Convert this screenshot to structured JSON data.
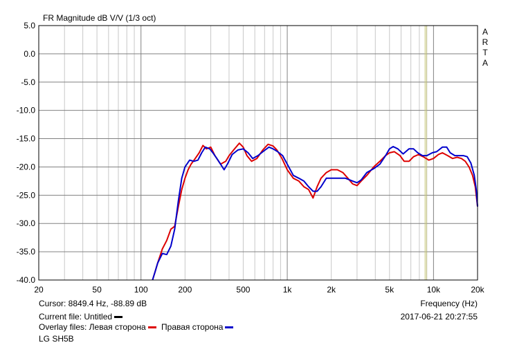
{
  "chart_data": {
    "type": "line",
    "title": "FR Magnitude dB V/V (1/3 oct)",
    "side_label": [
      "A",
      "R",
      "T",
      "A"
    ],
    "xlabel": "Frequency (Hz)",
    "x_scale": "log",
    "xlim": [
      20,
      20000
    ],
    "ylim": [
      -40,
      5
    ],
    "x_ticks": [
      {
        "value": 20,
        "label": "20"
      },
      {
        "value": 50,
        "label": "50"
      },
      {
        "value": 100,
        "label": "100"
      },
      {
        "value": 200,
        "label": "200"
      },
      {
        "value": 500,
        "label": "500"
      },
      {
        "value": 1000,
        "label": "1k"
      },
      {
        "value": 2000,
        "label": "2k"
      },
      {
        "value": 5000,
        "label": "5k"
      },
      {
        "value": 10000,
        "label": "10k"
      },
      {
        "value": 20000,
        "label": "20k"
      }
    ],
    "y_ticks": [
      {
        "value": 5,
        "label": "5.0"
      },
      {
        "value": 0,
        "label": "0.0"
      },
      {
        "value": -5,
        "label": "-5.0"
      },
      {
        "value": -10,
        "label": "-10.0"
      },
      {
        "value": -15,
        "label": "-15.0"
      },
      {
        "value": -20,
        "label": "-20.0"
      },
      {
        "value": -25,
        "label": "-25.0"
      },
      {
        "value": -30,
        "label": "-30.0"
      },
      {
        "value": -35,
        "label": "-35.0"
      },
      {
        "value": -40,
        "label": "-40.0"
      }
    ],
    "grid": true,
    "cursor_frequency": 8849.4,
    "series": [
      {
        "name": "Левая сторона",
        "color": "#dd0000",
        "points": [
          [
            120,
            -40
          ],
          [
            125,
            -38.5
          ],
          [
            130,
            -37
          ],
          [
            140,
            -34.5
          ],
          [
            150,
            -33
          ],
          [
            160,
            -31
          ],
          [
            170,
            -30.5
          ],
          [
            180,
            -27
          ],
          [
            190,
            -24
          ],
          [
            200,
            -22
          ],
          [
            210,
            -20.5
          ],
          [
            220,
            -19.5
          ],
          [
            235,
            -18.5
          ],
          [
            250,
            -17.5
          ],
          [
            265,
            -16.2
          ],
          [
            280,
            -16.8
          ],
          [
            300,
            -16.5
          ],
          [
            320,
            -18
          ],
          [
            350,
            -19.5
          ],
          [
            380,
            -19
          ],
          [
            400,
            -18
          ],
          [
            430,
            -17
          ],
          [
            470,
            -15.8
          ],
          [
            500,
            -16.5
          ],
          [
            530,
            -18
          ],
          [
            570,
            -19
          ],
          [
            620,
            -18.5
          ],
          [
            680,
            -17
          ],
          [
            740,
            -16
          ],
          [
            800,
            -16.3
          ],
          [
            850,
            -17
          ],
          [
            920,
            -18.5
          ],
          [
            1000,
            -20.5
          ],
          [
            1100,
            -22
          ],
          [
            1200,
            -22.5
          ],
          [
            1300,
            -23.5
          ],
          [
            1400,
            -24
          ],
          [
            1500,
            -25.5
          ],
          [
            1600,
            -23.5
          ],
          [
            1700,
            -22
          ],
          [
            1850,
            -21
          ],
          [
            2000,
            -20.5
          ],
          [
            2200,
            -20.5
          ],
          [
            2400,
            -21
          ],
          [
            2600,
            -22
          ],
          [
            2800,
            -23
          ],
          [
            3000,
            -23.3
          ],
          [
            3200,
            -22.5
          ],
          [
            3500,
            -21.5
          ],
          [
            3900,
            -20
          ],
          [
            4300,
            -19
          ],
          [
            4700,
            -18
          ],
          [
            5000,
            -17.5
          ],
          [
            5400,
            -17.3
          ],
          [
            5900,
            -18
          ],
          [
            6300,
            -19
          ],
          [
            6800,
            -19
          ],
          [
            7300,
            -18.2
          ],
          [
            7900,
            -17.8
          ],
          [
            8500,
            -18.2
          ],
          [
            9300,
            -18.8
          ],
          [
            10000,
            -18.5
          ],
          [
            10800,
            -17.8
          ],
          [
            11500,
            -17.5
          ],
          [
            12500,
            -18
          ],
          [
            13500,
            -18.5
          ],
          [
            14500,
            -18.3
          ],
          [
            15500,
            -18.5
          ],
          [
            16500,
            -19
          ],
          [
            17500,
            -20
          ],
          [
            18500,
            -21.5
          ],
          [
            19300,
            -23.5
          ],
          [
            20000,
            -27
          ]
        ]
      },
      {
        "name": "Правая сторона",
        "color": "#0000cc",
        "points": [
          [
            120,
            -40
          ],
          [
            125,
            -38.5
          ],
          [
            130,
            -37
          ],
          [
            140,
            -35.3
          ],
          [
            150,
            -35.5
          ],
          [
            160,
            -34
          ],
          [
            170,
            -31
          ],
          [
            180,
            -26
          ],
          [
            190,
            -22
          ],
          [
            200,
            -20
          ],
          [
            215,
            -18.8
          ],
          [
            230,
            -19
          ],
          [
            245,
            -18.8
          ],
          [
            260,
            -17.5
          ],
          [
            275,
            -16.5
          ],
          [
            295,
            -16.8
          ],
          [
            310,
            -17.5
          ],
          [
            330,
            -18.5
          ],
          [
            350,
            -19.5
          ],
          [
            370,
            -20.5
          ],
          [
            390,
            -19.5
          ],
          [
            420,
            -17.8
          ],
          [
            460,
            -17
          ],
          [
            500,
            -16.8
          ],
          [
            540,
            -17.5
          ],
          [
            580,
            -18.5
          ],
          [
            630,
            -18
          ],
          [
            690,
            -17.2
          ],
          [
            750,
            -16.5
          ],
          [
            800,
            -16.8
          ],
          [
            860,
            -17.3
          ],
          [
            930,
            -18
          ],
          [
            1000,
            -19.5
          ],
          [
            1100,
            -21.5
          ],
          [
            1200,
            -22
          ],
          [
            1300,
            -22.5
          ],
          [
            1400,
            -23.5
          ],
          [
            1500,
            -24.3
          ],
          [
            1600,
            -24.3
          ],
          [
            1700,
            -23.5
          ],
          [
            1850,
            -22
          ],
          [
            2000,
            -22
          ],
          [
            2200,
            -22
          ],
          [
            2500,
            -22
          ],
          [
            2800,
            -22.5
          ],
          [
            3000,
            -22.8
          ],
          [
            3200,
            -22.3
          ],
          [
            3500,
            -21
          ],
          [
            3900,
            -20.3
          ],
          [
            4300,
            -19.5
          ],
          [
            4700,
            -18
          ],
          [
            5000,
            -16.8
          ],
          [
            5300,
            -16.4
          ],
          [
            5700,
            -16.8
          ],
          [
            6200,
            -17.7
          ],
          [
            6800,
            -16.8
          ],
          [
            7300,
            -16.8
          ],
          [
            7800,
            -17.5
          ],
          [
            8400,
            -18
          ],
          [
            9000,
            -18
          ],
          [
            9800,
            -17.5
          ],
          [
            10500,
            -17.3
          ],
          [
            11500,
            -16.5
          ],
          [
            12300,
            -16.5
          ],
          [
            13000,
            -17.5
          ],
          [
            14000,
            -18
          ],
          [
            15000,
            -18
          ],
          [
            16000,
            -18
          ],
          [
            17000,
            -18.2
          ],
          [
            18000,
            -19.3
          ],
          [
            19000,
            -21.5
          ],
          [
            19600,
            -24
          ],
          [
            20000,
            -27
          ]
        ]
      }
    ]
  },
  "footer": {
    "cursor_text": "Cursor: 8849.4 Hz, -88.89 dB",
    "current_file_text": "Current file: Untitled",
    "overlay_prefix": "Overlay files: Левая сторона",
    "overlay_second": "Правая сторона",
    "name": "LG SH5B",
    "datetime": "2017-06-21  20:27:55"
  },
  "colors": {
    "background": "#ffffff",
    "grid_major": "#808080",
    "grid_minor": "#c8c8c8",
    "cursor_line": "#c8c87a",
    "current_file_swatch": "#000000"
  }
}
